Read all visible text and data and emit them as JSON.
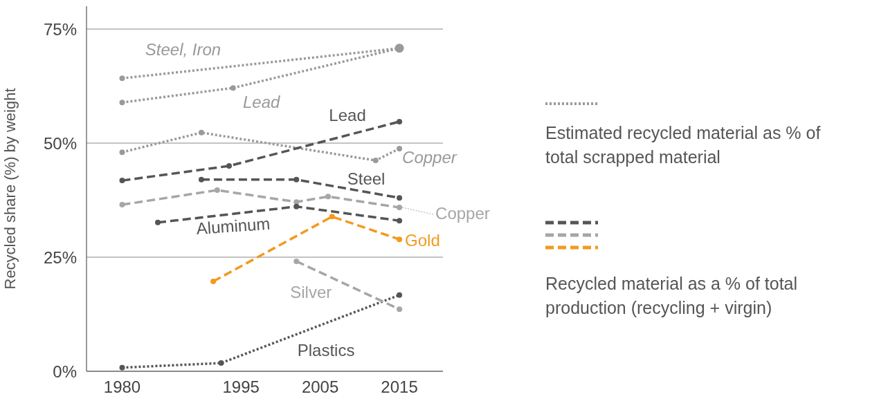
{
  "chart_data": {
    "type": "line",
    "ylabel": "Recycled share (%) by weight",
    "xlim": [
      1975.5,
      2020.5
    ],
    "xticks": [
      1980,
      1995,
      2005,
      2015
    ],
    "ylim": [
      0,
      80
    ],
    "yticks": [
      {
        "value": 0,
        "label": "0%"
      },
      {
        "value": 25,
        "label": "25%"
      },
      {
        "value": 50,
        "label": "50%"
      },
      {
        "value": 75,
        "label": "75%"
      }
    ],
    "grid": "y",
    "marker": "circle",
    "annotations": [
      "Estimated recycled material as % of total scrapped material",
      "Recycled material as a % of total production (recycling + virgin)"
    ],
    "series": [
      {
        "name": "Steel, Iron",
        "color": "#9a9a9a",
        "line_style": "dotted",
        "x": [
          1980,
          2015
        ],
        "values": [
          64.2,
          70.8
        ]
      },
      {
        "name": "Lead",
        "color": "#9a9a9a",
        "line_style": "dotted",
        "x": [
          1980,
          1994,
          2015
        ],
        "values": [
          58.9,
          62.1,
          70.8
        ]
      },
      {
        "name": "Copper",
        "color": "#9a9a9a",
        "line_style": "dotted",
        "x": [
          1980,
          1990,
          2012,
          2015
        ],
        "values": [
          48.0,
          52.3,
          46.2,
          48.8
        ]
      },
      {
        "name": "Plastics",
        "color": "#555555",
        "line_style": "dotted",
        "x": [
          1980,
          1992.5,
          2015
        ],
        "values": [
          0.8,
          1.8,
          16.7
        ]
      },
      {
        "name": "Lead",
        "color": "#555555",
        "line_style": "dashed",
        "x": [
          1980,
          1993.5,
          2015
        ],
        "values": [
          41.8,
          45.0,
          54.7
        ]
      },
      {
        "name": "Steel",
        "color": "#555555",
        "line_style": "dashed",
        "x": [
          1990,
          2002,
          2015
        ],
        "values": [
          42.0,
          42.0,
          38.0
        ]
      },
      {
        "name": "Copper",
        "color": "#a6a6a6",
        "line_style": "dashed",
        "x": [
          1980,
          1992,
          2002,
          2006,
          2015
        ],
        "values": [
          36.5,
          39.7,
          37.1,
          38.3,
          35.9
        ]
      },
      {
        "name": "Aluminum",
        "color": "#555555",
        "line_style": "dashed",
        "x": [
          1984.5,
          2002,
          2015
        ],
        "values": [
          32.6,
          36.1,
          33.0
        ]
      },
      {
        "name": "Gold",
        "color": "#f39a1e",
        "line_style": "dashed",
        "x": [
          1991.5,
          2006.5,
          2015
        ],
        "values": [
          19.7,
          33.9,
          28.9
        ]
      },
      {
        "name": "Silver",
        "color": "#a6a6a6",
        "line_style": "dashed",
        "x": [
          2002,
          2015
        ],
        "values": [
          24.1,
          13.6
        ]
      }
    ]
  }
}
